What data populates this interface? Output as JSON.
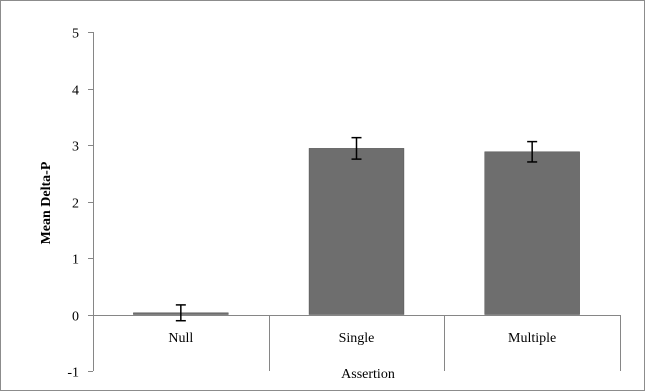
{
  "chart_data": {
    "type": "bar",
    "title": "",
    "xlabel": "Assertion",
    "ylabel": "Mean Delta-P",
    "categories": [
      "Null",
      "Single",
      "Multiple"
    ],
    "series": [
      {
        "values": [
          0.03,
          2.94,
          2.88
        ],
        "error": [
          0.14,
          0.19,
          0.18
        ],
        "color": "#6e6e6e"
      }
    ],
    "ylim": [
      -1,
      5
    ],
    "yticks": [
      "-1",
      "0",
      "1",
      "2",
      "3",
      "4",
      "5"
    ],
    "grid": false,
    "legend": "none",
    "frame_color": "#8c8c8c",
    "axis_color": "#868686"
  }
}
